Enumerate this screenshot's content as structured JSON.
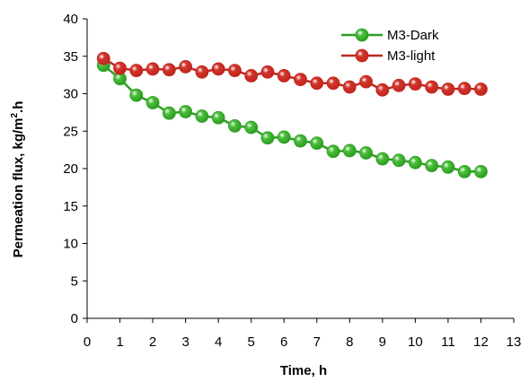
{
  "chart_data": {
    "type": "line",
    "xlabel": "Time, h",
    "ylabel_main": "Permeation flux, kg/m",
    "ylabel_sup": "2",
    "ylabel_tail": ".h",
    "xlim": [
      0,
      13
    ],
    "ylim": [
      0,
      40
    ],
    "xticks": [
      0,
      1,
      2,
      3,
      4,
      5,
      6,
      7,
      8,
      9,
      10,
      11,
      12,
      13
    ],
    "yticks": [
      0,
      5,
      10,
      15,
      20,
      25,
      30,
      35,
      40
    ],
    "grid": false,
    "legend_position": "top-right",
    "series": [
      {
        "name": "M3-Dark",
        "color": "#2e9e22",
        "marker_color": "#4cbf3c",
        "x": [
          0.5,
          1,
          1.5,
          2,
          2.5,
          3,
          3.5,
          4,
          4.5,
          5,
          5.5,
          6,
          6.5,
          7,
          7.5,
          8,
          8.5,
          9,
          9.5,
          10,
          10.5,
          11,
          11.5,
          12
        ],
        "values": [
          33.8,
          32.0,
          29.8,
          28.8,
          27.4,
          27.6,
          27.0,
          26.8,
          25.7,
          25.5,
          24.1,
          24.2,
          23.7,
          23.4,
          22.3,
          22.4,
          22.1,
          21.3,
          21.1,
          20.8,
          20.4,
          20.2,
          19.6,
          19.6
        ]
      },
      {
        "name": "M3-light",
        "color": "#c0271f",
        "marker_color": "#d4332b",
        "x": [
          0.5,
          1,
          1.5,
          2,
          2.5,
          3,
          3.5,
          4,
          4.5,
          5,
          5.5,
          6,
          6.5,
          7,
          7.5,
          8,
          8.5,
          9,
          9.5,
          10,
          10.5,
          11,
          11.5,
          12
        ],
        "values": [
          34.7,
          33.4,
          33.1,
          33.3,
          33.2,
          33.6,
          32.9,
          33.3,
          33.1,
          32.4,
          32.9,
          32.4,
          31.9,
          31.4,
          31.4,
          30.9,
          31.6,
          30.5,
          31.1,
          31.3,
          30.9,
          30.6,
          30.7,
          30.6
        ]
      }
    ]
  }
}
